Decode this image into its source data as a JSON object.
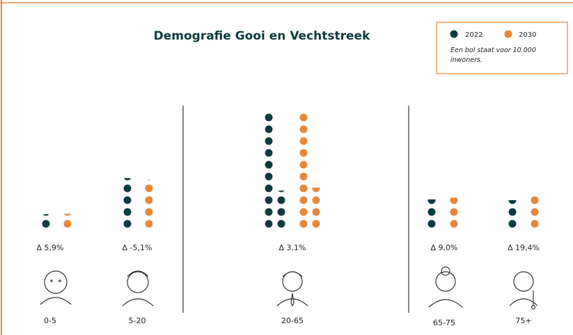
{
  "chart_data": {
    "type": "pictogram",
    "title": "Demografie Gooi en Vechtstreek",
    "note": "Een bol staat voor  10.000 inwoners.",
    "categories": [
      "0-5",
      "5-20",
      "20-65",
      "65-75",
      "75+"
    ],
    "series": [
      {
        "name": "2022",
        "color": "#0e3a40",
        "values": [
          1.2,
          4.3,
          13.2,
          2.6,
          2.5
        ]
      },
      {
        "name": "2030",
        "color": "#e8873a",
        "values": [
          1.27,
          4.08,
          13.6,
          2.83,
          2.99
        ]
      }
    ],
    "deltas": [
      "Δ 5,9%",
      "Δ -5,1%",
      "Δ  3,1%",
      "Δ  9,0%",
      "Δ 19,4%"
    ]
  }
}
